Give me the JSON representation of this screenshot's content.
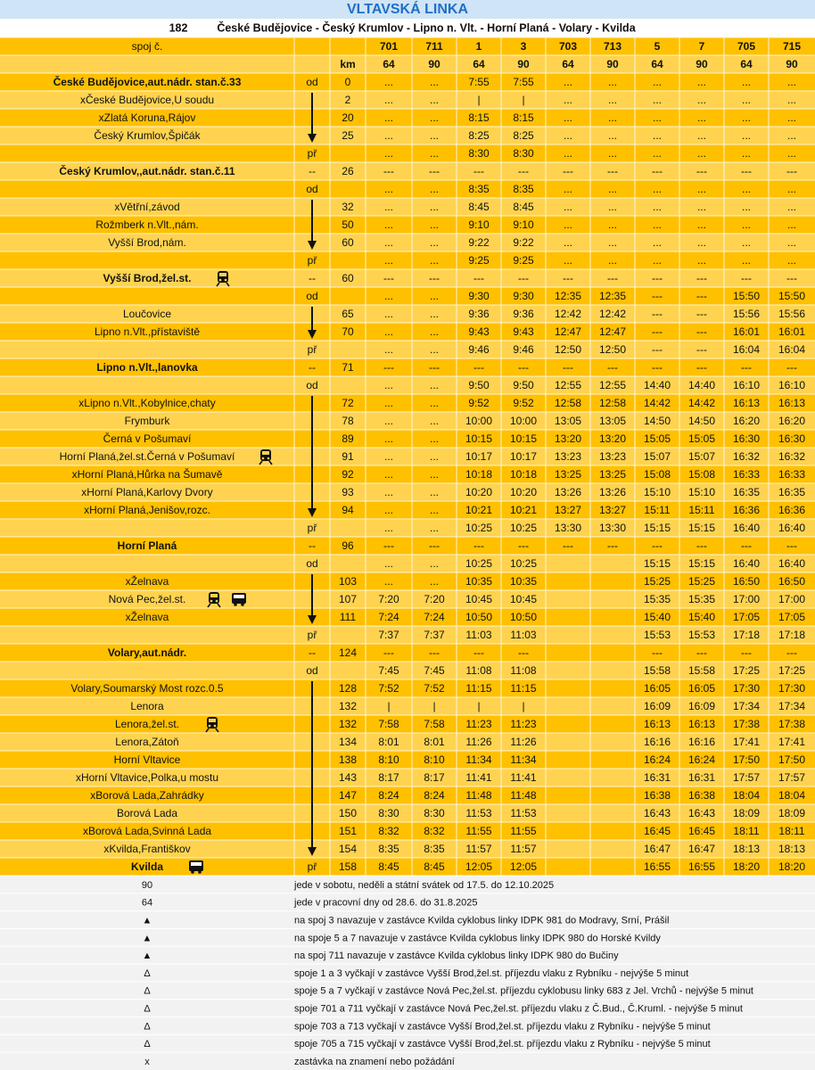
{
  "title": "VLTAVSKÁ LINKA",
  "line": "182",
  "route": "České Budějovice - Český Krumlov - Lipno n. Vlt. - Horní Planá - Volary - Kvilda",
  "rows": [
    [
      "spoj č.",
      null,
      null,
      "701",
      "711",
      "1",
      "3",
      "703",
      "713",
      "5",
      "7",
      "705",
      "715"
    ],
    [
      null,
      null,
      "km",
      "64",
      "90",
      "64",
      "90",
      "64",
      "90",
      "64",
      "90",
      "64",
      "90"
    ],
    [
      "České Budějovice,aut.nádr. stan.č.33",
      "od",
      "0",
      "...",
      "...",
      "7:55",
      "7:55",
      "...",
      "...",
      "...",
      "...",
      "...",
      "..."
    ],
    [
      "xČeské Budějovice,U soudu",
      null,
      "2",
      "...",
      "...",
      "|",
      "|",
      "...",
      "...",
      "...",
      "...",
      "...",
      "..."
    ],
    [
      "xZlatá Koruna,Rájov",
      null,
      "20",
      "...",
      "...",
      "8:15",
      "8:15",
      "...",
      "...",
      "...",
      "...",
      "...",
      "..."
    ],
    [
      "Český Krumlov,Špičák",
      null,
      "25",
      "...",
      "...",
      "8:25",
      "8:25",
      "...",
      "...",
      "...",
      "...",
      "...",
      "..."
    ],
    [
      null,
      "př",
      null,
      "...",
      "...",
      "8:30",
      "8:30",
      "...",
      "...",
      "...",
      "...",
      "...",
      "..."
    ],
    [
      "Český Krumlov,,aut.nádr. stan.č.11",
      "--",
      "26",
      "---",
      "---",
      "---",
      "---",
      "---",
      "---",
      "---",
      "---",
      "---",
      "---"
    ],
    [
      null,
      "od",
      null,
      "...",
      "...",
      "8:35",
      "8:35",
      "...",
      "...",
      "...",
      "...",
      "...",
      "..."
    ],
    [
      "xVětřní,závod",
      null,
      "32",
      "...",
      "...",
      "8:45",
      "8:45",
      "...",
      "...",
      "...",
      "...",
      "...",
      "..."
    ],
    [
      "Rožmberk n.Vlt.,nám.",
      null,
      "50",
      "...",
      "...",
      "9:10",
      "9:10",
      "...",
      "...",
      "...",
      "...",
      "...",
      "..."
    ],
    [
      "Vyšší Brod,nám.",
      null,
      "60",
      "...",
      "...",
      "9:22",
      "9:22",
      "...",
      "...",
      "...",
      "...",
      "...",
      "..."
    ],
    [
      null,
      "př",
      null,
      "...",
      "...",
      "9:25",
      "9:25",
      "...",
      "...",
      "...",
      "...",
      "...",
      "..."
    ],
    [
      "Vyšší Brod,žel.st.",
      "--",
      "60",
      "---",
      "---",
      "---",
      "---",
      "---",
      "---",
      "---",
      "---",
      "---",
      "---"
    ],
    [
      null,
      "od",
      null,
      "...",
      "...",
      "9:30",
      "9:30",
      "12:35",
      "12:35",
      "---",
      "---",
      "15:50",
      "15:50"
    ],
    [
      "Loučovice",
      null,
      "65",
      "...",
      "...",
      "9:36",
      "9:36",
      "12:42",
      "12:42",
      "---",
      "---",
      "15:56",
      "15:56"
    ],
    [
      "Lipno n.Vlt.,přístaviště",
      null,
      "70",
      "...",
      "...",
      "9:43",
      "9:43",
      "12:47",
      "12:47",
      "---",
      "---",
      "16:01",
      "16:01"
    ],
    [
      null,
      "př",
      null,
      "...",
      "...",
      "9:46",
      "9:46",
      "12:50",
      "12:50",
      "---",
      "---",
      "16:04",
      "16:04"
    ],
    [
      "Lipno n.Vlt.,lanovka",
      "--",
      "71",
      "---",
      "---",
      "---",
      "---",
      "---",
      "---",
      "---",
      "---",
      "---",
      "---"
    ],
    [
      null,
      "od",
      null,
      "...",
      "...",
      "9:50",
      "9:50",
      "12:55",
      "12:55",
      "14:40",
      "14:40",
      "16:10",
      "16:10"
    ],
    [
      "xLipno n.Vlt.,Kobylnice,chaty",
      null,
      "72",
      "...",
      "...",
      "9:52",
      "9:52",
      "12:58",
      "12:58",
      "14:42",
      "14:42",
      "16:13",
      "16:13"
    ],
    [
      "Frymburk",
      null,
      "78",
      "...",
      "...",
      "10:00",
      "10:00",
      "13:05",
      "13:05",
      "14:50",
      "14:50",
      "16:20",
      "16:20"
    ],
    [
      "Černá v Pošumaví",
      null,
      "89",
      "...",
      "...",
      "10:15",
      "10:15",
      "13:20",
      "13:20",
      "15:05",
      "15:05",
      "16:30",
      "16:30"
    ],
    [
      "Horní Planá,žel.st.Černá v Pošumaví",
      null,
      "91",
      "...",
      "...",
      "10:17",
      "10:17",
      "13:23",
      "13:23",
      "15:07",
      "15:07",
      "16:32",
      "16:32"
    ],
    [
      "xHorní Planá,Hůrka na Šumavě",
      null,
      "92",
      "...",
      "...",
      "10:18",
      "10:18",
      "13:25",
      "13:25",
      "15:08",
      "15:08",
      "16:33",
      "16:33"
    ],
    [
      "xHorní Planá,Karlovy Dvory",
      null,
      "93",
      "...",
      "...",
      "10:20",
      "10:20",
      "13:26",
      "13:26",
      "15:10",
      "15:10",
      "16:35",
      "16:35"
    ],
    [
      "xHorní Planá,Jenišov,rozc.",
      null,
      "94",
      "...",
      "...",
      "10:21",
      "10:21",
      "13:27",
      "13:27",
      "15:11",
      "15:11",
      "16:36",
      "16:36"
    ],
    [
      null,
      "př",
      null,
      "...",
      "...",
      "10:25",
      "10:25",
      "13:30",
      "13:30",
      "15:15",
      "15:15",
      "16:40",
      "16:40"
    ],
    [
      "Horní Planá",
      "--",
      "96",
      "---",
      "---",
      "---",
      "---",
      "---",
      "---",
      "---",
      "---",
      "---",
      "---"
    ],
    [
      null,
      "od",
      null,
      "...",
      "...",
      "10:25",
      "10:25",
      null,
      null,
      "15:15",
      "15:15",
      "16:40",
      "16:40"
    ],
    [
      "xŽelnava",
      null,
      "103",
      "...",
      "...",
      "10:35",
      "10:35",
      null,
      null,
      "15:25",
      "15:25",
      "16:50",
      "16:50"
    ],
    [
      "Nová Pec,žel.st.",
      null,
      "107",
      "7:20",
      "7:20",
      "10:45",
      "10:45",
      null,
      null,
      "15:35",
      "15:35",
      "17:00",
      "17:00"
    ],
    [
      "xŽelnava",
      null,
      "111",
      "7:24",
      "7:24",
      "10:50",
      "10:50",
      null,
      null,
      "15:40",
      "15:40",
      "17:05",
      "17:05"
    ],
    [
      null,
      "př",
      null,
      "7:37",
      "7:37",
      "11:03",
      "11:03",
      null,
      null,
      "15:53",
      "15:53",
      "17:18",
      "17:18"
    ],
    [
      "Volary,aut.nádr.",
      "--",
      "124",
      "---",
      "---",
      "---",
      "---",
      null,
      null,
      "---",
      "---",
      "---",
      "---"
    ],
    [
      null,
      "od",
      null,
      "7:45",
      "7:45",
      "11:08",
      "11:08",
      null,
      null,
      "15:58",
      "15:58",
      "17:25",
      "17:25"
    ],
    [
      "Volary,Soumarský Most rozc.0.5",
      null,
      "128",
      "7:52",
      "7:52",
      "11:15",
      "11:15",
      null,
      null,
      "16:05",
      "16:05",
      "17:30",
      "17:30"
    ],
    [
      "Lenora",
      null,
      "132",
      "|",
      "|",
      "|",
      "|",
      null,
      null,
      "16:09",
      "16:09",
      "17:34",
      "17:34"
    ],
    [
      "Lenora,žel.st.",
      null,
      "132",
      "7:58",
      "7:58",
      "11:23",
      "11:23",
      null,
      null,
      "16:13",
      "16:13",
      "17:38",
      "17:38"
    ],
    [
      "Lenora,Zátoň",
      null,
      "134",
      "8:01",
      "8:01",
      "11:26",
      "11:26",
      null,
      null,
      "16:16",
      "16:16",
      "17:41",
      "17:41"
    ],
    [
      "Horní Vltavice",
      null,
      "138",
      "8:10",
      "8:10",
      "11:34",
      "11:34",
      null,
      null,
      "16:24",
      "16:24",
      "17:50",
      "17:50"
    ],
    [
      "xHorní Vltavice,Polka,u mostu",
      null,
      "143",
      "8:17",
      "8:17",
      "11:41",
      "11:41",
      null,
      null,
      "16:31",
      "16:31",
      "17:57",
      "17:57"
    ],
    [
      "xBorová Lada,Zahrádky",
      null,
      "147",
      "8:24",
      "8:24",
      "11:48",
      "11:48",
      null,
      null,
      "16:38",
      "16:38",
      "18:04",
      "18:04"
    ],
    [
      "Borová Lada",
      null,
      "150",
      "8:30",
      "8:30",
      "11:53",
      "11:53",
      null,
      null,
      "16:43",
      "16:43",
      "18:09",
      "18:09"
    ],
    [
      "xBorová Lada,Svinná Lada",
      null,
      "151",
      "8:32",
      "8:32",
      "11:55",
      "11:55",
      null,
      null,
      "16:45",
      "16:45",
      "18:11",
      "18:11"
    ],
    [
      "xKvilda,Františkov",
      null,
      "154",
      "8:35",
      "8:35",
      "11:57",
      "11:57",
      null,
      null,
      "16:47",
      "16:47",
      "18:13",
      "18:13"
    ],
    [
      "Kvilda",
      "př",
      "158",
      "8:45",
      "8:45",
      "12:05",
      "12:05",
      null,
      null,
      "16:55",
      "16:55",
      "18:20",
      "18:20"
    ]
  ],
  "notes": [
    {
      "symbol": "90",
      "text": "jede v sobotu, neděli a státní svátek od 17.5. do 12.10.2025"
    },
    {
      "symbol": "64",
      "text": "jede v pracovní dny od  28.6. do 31.8.2025"
    },
    {
      "symbol": "▲",
      "text": "na spoj 3 navazuje v zastávce Kvilda cyklobus linky IDPK 981 do Modravy, Srní, Prášil"
    },
    {
      "symbol": "▲",
      "text": "na spoje 5 a 7 navazuje v zastávce Kvilda cyklobus linky IDPK 980 do Horské Kvildy"
    },
    {
      "symbol": "▲",
      "text": "na spoj 711 navazuje v zastávce Kvilda cyklobus linky IDPK 980 do Bučiny"
    },
    {
      "symbol": "Δ",
      "text": "spoje 1 a 3 vyčkají v zastávce Vyšší Brod,žel.st. příjezdu vlaku z Rybníku - nejvýše 5 minut"
    },
    {
      "symbol": "Δ",
      "text": "spoje 5 a 7 vyčkají v zastávce Nová Pec,žel.st. příjezdu cyklobusu linky 683 z Jel. Vrchů - nejvýše 5 minut"
    },
    {
      "symbol": "Δ",
      "text": "spoje 701 a 711 vyčkají v zastávce Nová Pec,žel.st. příjezdu vlaku z Č.Bud., Č.Kruml. - nejvýše 5 minut"
    },
    {
      "symbol": "Δ",
      "text": "spoje 703 a 713 vyčkají v zastávce Vyšší Brod,žel.st. příjezdu vlaku z Rybníku - nejvýše 5 minut"
    },
    {
      "symbol": "Δ",
      "text": "spoje 705 a 715 vyčkají v zastávce Vyšší Brod,žel.st. příjezdu vlaku z Rybníku - nejvýše 5 minut"
    },
    {
      "symbol": "x",
      "text": "zastávka na znamení nebo požádání"
    }
  ]
}
